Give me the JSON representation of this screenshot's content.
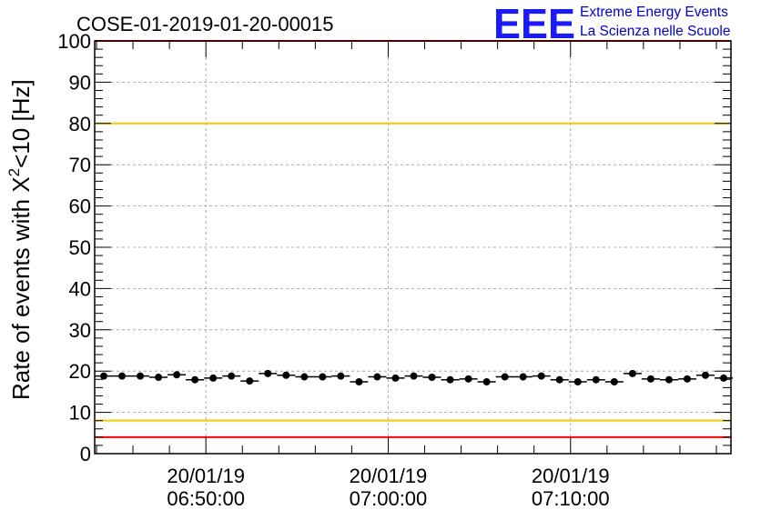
{
  "chart_data": {
    "type": "scatter",
    "title": "COSE-01-2019-01-20-00015",
    "ylabel_main": "Rate of events with X",
    "ylabel_sup": "2",
    "ylabel_tail": "<10 [Hz]",
    "ylim": [
      0,
      100
    ],
    "xlim_minutes": [
      -6.1,
      28.8
    ],
    "y_ticks": [
      0,
      10,
      20,
      30,
      40,
      50,
      60,
      70,
      80,
      90,
      100
    ],
    "x_ticks": [
      {
        "value": 0,
        "date": "20/01/19",
        "time": "06:50:00"
      },
      {
        "value": 10,
        "date": "20/01/19",
        "time": "07:00:00"
      },
      {
        "value": 20,
        "date": "20/01/19",
        "time": "07:10:00"
      }
    ],
    "grid": true,
    "points": [
      {
        "x": -5.6,
        "y": 18.8
      },
      {
        "x": -4.6,
        "y": 18.8
      },
      {
        "x": -3.6,
        "y": 18.8
      },
      {
        "x": -2.6,
        "y": 18.5
      },
      {
        "x": -1.6,
        "y": 19.1
      },
      {
        "x": -0.6,
        "y": 17.9
      },
      {
        "x": 0.4,
        "y": 18.3
      },
      {
        "x": 1.4,
        "y": 18.8
      },
      {
        "x": 2.4,
        "y": 17.6
      },
      {
        "x": 3.4,
        "y": 19.4
      },
      {
        "x": 4.4,
        "y": 19.0
      },
      {
        "x": 5.4,
        "y": 18.6
      },
      {
        "x": 6.4,
        "y": 18.6
      },
      {
        "x": 7.4,
        "y": 18.8
      },
      {
        "x": 8.4,
        "y": 17.4
      },
      {
        "x": 9.4,
        "y": 18.6
      },
      {
        "x": 10.4,
        "y": 18.3
      },
      {
        "x": 11.4,
        "y": 18.8
      },
      {
        "x": 12.4,
        "y": 18.5
      },
      {
        "x": 13.4,
        "y": 17.9
      },
      {
        "x": 14.4,
        "y": 18.1
      },
      {
        "x": 15.4,
        "y": 17.4
      },
      {
        "x": 16.4,
        "y": 18.6
      },
      {
        "x": 17.4,
        "y": 18.6
      },
      {
        "x": 18.4,
        "y": 18.8
      },
      {
        "x": 19.4,
        "y": 17.9
      },
      {
        "x": 20.4,
        "y": 17.4
      },
      {
        "x": 21.4,
        "y": 17.9
      },
      {
        "x": 22.4,
        "y": 17.4
      },
      {
        "x": 23.4,
        "y": 19.4
      },
      {
        "x": 24.4,
        "y": 18.1
      },
      {
        "x": 25.4,
        "y": 17.9
      },
      {
        "x": 26.4,
        "y": 18.1
      },
      {
        "x": 27.4,
        "y": 19.0
      },
      {
        "x": 28.4,
        "y": 18.3
      }
    ],
    "x_error_half_width": 0.5,
    "reference_lines": [
      {
        "y": 100,
        "color": "#ff0000"
      },
      {
        "y": 80,
        "color": "#f0c800"
      },
      {
        "y": 8,
        "color": "#f0c800"
      },
      {
        "y": 4,
        "color": "#ff0000"
      }
    ]
  },
  "logo": {
    "mark": "EEE",
    "line1": "Extreme Energy Events",
    "line2": "La Scienza nelle Scuole",
    "color": "#1a1aff"
  }
}
